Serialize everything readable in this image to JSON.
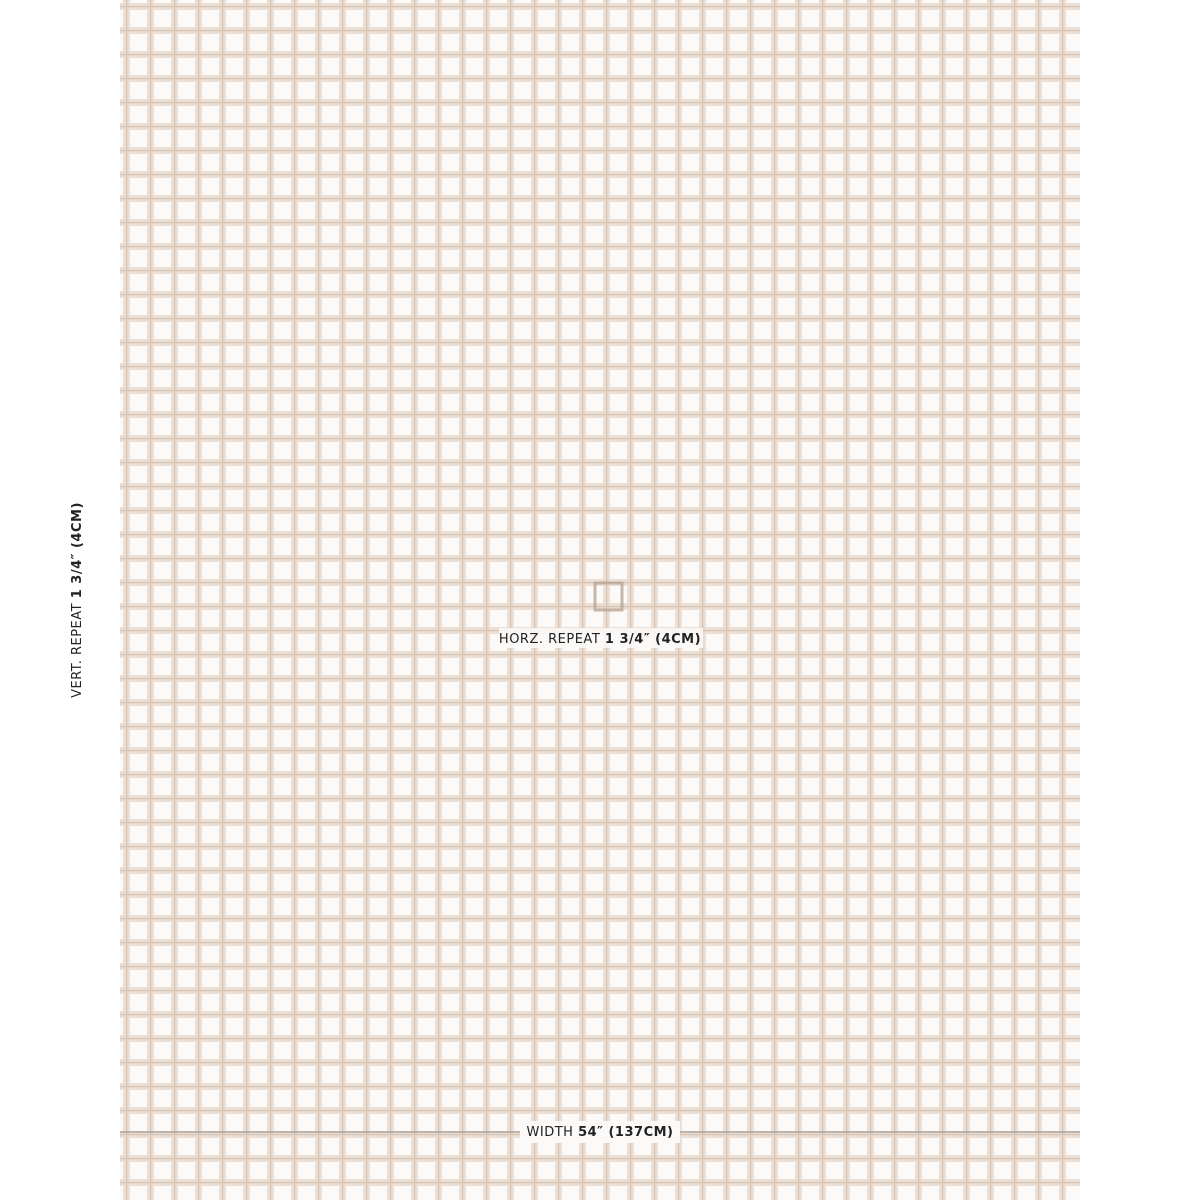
{
  "vertical_repeat": {
    "label": "VERT. REPEAT",
    "value": "1 3/4″ (4CM)"
  },
  "horizontal_repeat": {
    "label": "HORZ. REPEAT",
    "value": "1 3/4″ (4CM)"
  },
  "width": {
    "label": "WIDTH",
    "value": "54″ (137CM)"
  }
}
